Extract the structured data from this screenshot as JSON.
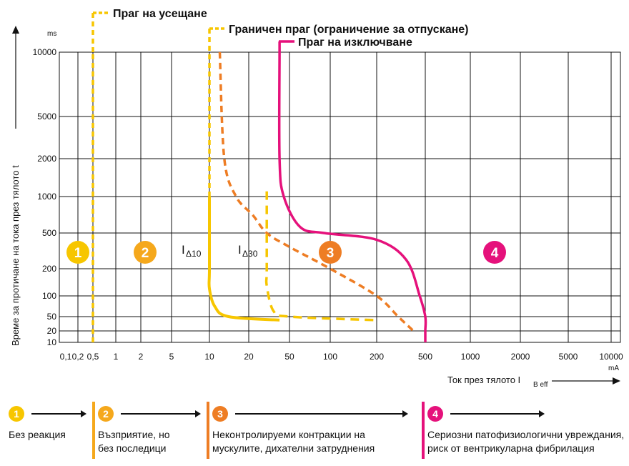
{
  "chart_data": {
    "type": "line",
    "title": "",
    "xlabel": "Ток през тялото I",
    "xlabel_sub": "B eff",
    "xunit": "mA",
    "ylabel": "Време за протичане на тока през тялото t",
    "yunit": "ms",
    "xscale": "log",
    "yscale": "nonlinear",
    "x_ticks": [
      0.1,
      0.2,
      0.5,
      1,
      2,
      5,
      10,
      20,
      50,
      100,
      200,
      500,
      1000,
      2000,
      5000,
      10000
    ],
    "x_tick_labels": [
      "0,1",
      "0,2",
      "0,5",
      "1",
      "2",
      "5",
      "10",
      "20",
      "50",
      "100",
      "200",
      "500",
      "1000",
      "2000",
      "5000",
      "10000"
    ],
    "y_ticks": [
      10,
      20,
      50,
      100,
      200,
      500,
      1000,
      2000,
      5000,
      10000
    ],
    "y_tick_labels": [
      "10",
      "20",
      "50",
      "100",
      "200",
      "500",
      "1000",
      "2000",
      "5000",
      "10000"
    ],
    "grid": true,
    "legend": "top",
    "series": [
      {
        "name": "Праг на усещане",
        "color": "#f7c600",
        "style": "dashed",
        "points": [
          [
            0.5,
            10
          ],
          [
            0.5,
            10000
          ]
        ]
      },
      {
        "name": "Граничен праг (ограничение за отпускане)",
        "color": "#f7c600",
        "style": "dashed",
        "points": [
          [
            10,
            10000
          ]
        ]
      },
      {
        "name": "",
        "color": "#ee7d24",
        "style": "dashed",
        "points": [
          [
            12,
            10000
          ],
          [
            13,
            2000
          ],
          [
            16,
            1000
          ],
          [
            22,
            700
          ],
          [
            30,
            500
          ],
          [
            50,
            350
          ],
          [
            100,
            200
          ],
          [
            200,
            100
          ],
          [
            300,
            50
          ],
          [
            400,
            20
          ]
        ]
      },
      {
        "name": "Праг на изключване",
        "color": "#e5117b",
        "style": "solid",
        "points": [
          [
            40,
            10000
          ],
          [
            40,
            2000
          ],
          [
            44,
            1000
          ],
          [
            60,
            560
          ],
          [
            90,
            500
          ],
          [
            200,
            420
          ],
          [
            350,
            250
          ],
          [
            450,
            100
          ],
          [
            500,
            50
          ],
          [
            500,
            20
          ],
          [
            500,
            10
          ]
        ]
      },
      {
        "name": "IΔ10",
        "color": "#f7c600",
        "style": "solid",
        "points": [
          [
            10,
            1000
          ],
          [
            10,
            200
          ],
          [
            10,
            120
          ],
          [
            11,
            70
          ],
          [
            14,
            50
          ],
          [
            40,
            40
          ]
        ]
      },
      {
        "name": "IΔ30",
        "color": "#f7c600",
        "style": "dashed",
        "points": [
          [
            30,
            1100
          ],
          [
            30,
            200
          ],
          [
            30,
            130
          ],
          [
            35,
            60
          ],
          [
            50,
            50
          ],
          [
            200,
            40
          ]
        ]
      }
    ],
    "zones": [
      {
        "label": "1",
        "color": "#f7c600"
      },
      {
        "label": "2",
        "color": "#f5a81c"
      },
      {
        "label": "3",
        "color": "#ee7d24"
      },
      {
        "label": "4",
        "color": "#e5117b"
      }
    ],
    "curve_labels": [
      {
        "main": "I",
        "sub": "Δ10"
      },
      {
        "main": "I",
        "sub": "Δ30"
      }
    ]
  },
  "legend_items": [
    {
      "num": "1",
      "color": "#f7c600",
      "line1": "Без реакция",
      "line2": ""
    },
    {
      "num": "2",
      "color": "#f5a81c",
      "line1": "Възприятие, но",
      "line2": "без последици"
    },
    {
      "num": "3",
      "color": "#ee7d24",
      "line1": "Неконтролируеми контракции на",
      "line2": "мускулите, дихателни затруднения"
    },
    {
      "num": "4",
      "color": "#e5117b",
      "line1": "Сериозни патофизиологични увреждания,",
      "line2": "риск от вентрикуларна фибрилация"
    }
  ]
}
